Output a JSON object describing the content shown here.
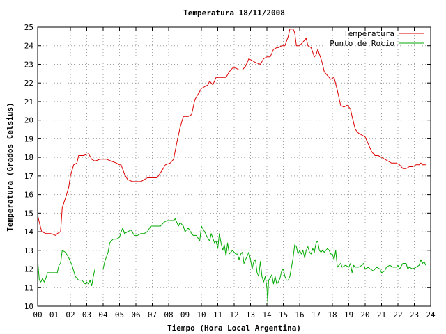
{
  "chart_data": {
    "type": "line",
    "title": "Temperatura 18/11/2008",
    "xlabel": "Tiempo (Hora Local Argentina)",
    "ylabel": "Temperatura (Grados Celsius)",
    "xlim": [
      0,
      24
    ],
    "ylim": [
      10,
      25
    ],
    "x_ticks": [
      "00",
      "01",
      "02",
      "03",
      "04",
      "05",
      "06",
      "07",
      "08",
      "09",
      "10",
      "11",
      "12",
      "13",
      "14",
      "15",
      "16",
      "17",
      "18",
      "19",
      "20",
      "21",
      "22",
      "23",
      "24"
    ],
    "y_ticks": [
      "10",
      "11",
      "12",
      "13",
      "14",
      "15",
      "16",
      "17",
      "18",
      "19",
      "20",
      "21",
      "22",
      "23",
      "24",
      "25"
    ],
    "grid": true,
    "legend_position": "top-right",
    "series": [
      {
        "name": "Temperatura",
        "color": "#dd0000",
        "points": [
          [
            0.0,
            14.9
          ],
          [
            0.1,
            14.5
          ],
          [
            0.25,
            14.0
          ],
          [
            0.5,
            13.9
          ],
          [
            0.8,
            13.9
          ],
          [
            1.1,
            13.8
          ],
          [
            1.2,
            13.9
          ],
          [
            1.4,
            14.0
          ],
          [
            1.5,
            15.3
          ],
          [
            1.7,
            15.8
          ],
          [
            1.9,
            16.4
          ],
          [
            2.0,
            17.0
          ],
          [
            2.2,
            17.6
          ],
          [
            2.4,
            17.7
          ],
          [
            2.5,
            18.1
          ],
          [
            2.8,
            18.1
          ],
          [
            3.1,
            18.2
          ],
          [
            3.3,
            17.9
          ],
          [
            3.5,
            17.8
          ],
          [
            3.8,
            17.9
          ],
          [
            4.2,
            17.9
          ],
          [
            4.5,
            17.8
          ],
          [
            4.8,
            17.7
          ],
          [
            5.0,
            17.6
          ],
          [
            5.1,
            17.6
          ],
          [
            5.3,
            17.1
          ],
          [
            5.5,
            16.8
          ],
          [
            5.8,
            16.7
          ],
          [
            6.3,
            16.7
          ],
          [
            6.5,
            16.8
          ],
          [
            6.7,
            16.9
          ],
          [
            7.0,
            16.9
          ],
          [
            7.3,
            16.9
          ],
          [
            7.6,
            17.3
          ],
          [
            7.8,
            17.6
          ],
          [
            8.1,
            17.7
          ],
          [
            8.3,
            17.9
          ],
          [
            8.5,
            18.8
          ],
          [
            8.7,
            19.6
          ],
          [
            8.9,
            20.2
          ],
          [
            9.2,
            20.2
          ],
          [
            9.4,
            20.3
          ],
          [
            9.6,
            21.1
          ],
          [
            9.8,
            21.4
          ],
          [
            10.0,
            21.7
          ],
          [
            10.2,
            21.8
          ],
          [
            10.4,
            21.9
          ],
          [
            10.5,
            22.1
          ],
          [
            10.7,
            21.9
          ],
          [
            10.9,
            22.3
          ],
          [
            11.2,
            22.3
          ],
          [
            11.5,
            22.3
          ],
          [
            11.7,
            22.6
          ],
          [
            11.9,
            22.8
          ],
          [
            12.1,
            22.8
          ],
          [
            12.3,
            22.7
          ],
          [
            12.5,
            22.7
          ],
          [
            12.7,
            22.9
          ],
          [
            12.9,
            23.3
          ],
          [
            13.1,
            23.2
          ],
          [
            13.3,
            23.1
          ],
          [
            13.6,
            23.0
          ],
          [
            13.8,
            23.3
          ],
          [
            14.0,
            23.4
          ],
          [
            14.2,
            23.4
          ],
          [
            14.4,
            23.8
          ],
          [
            14.6,
            23.9
          ],
          [
            14.7,
            23.9
          ],
          [
            14.9,
            24.0
          ],
          [
            15.1,
            24.0
          ],
          [
            15.3,
            24.5
          ],
          [
            15.4,
            24.9
          ],
          [
            15.5,
            24.9
          ],
          [
            15.6,
            24.9
          ],
          [
            15.7,
            24.7
          ],
          [
            15.8,
            24.0
          ],
          [
            16.0,
            24.0
          ],
          [
            16.2,
            24.2
          ],
          [
            16.4,
            24.4
          ],
          [
            16.5,
            24.0
          ],
          [
            16.7,
            23.9
          ],
          [
            16.9,
            23.4
          ],
          [
            17.0,
            23.5
          ],
          [
            17.1,
            23.8
          ],
          [
            17.3,
            23.3
          ],
          [
            17.4,
            23.0
          ],
          [
            17.5,
            22.6
          ],
          [
            17.7,
            22.4
          ],
          [
            17.9,
            22.2
          ],
          [
            18.1,
            22.3
          ],
          [
            18.3,
            21.6
          ],
          [
            18.5,
            20.8
          ],
          [
            18.7,
            20.7
          ],
          [
            18.9,
            20.8
          ],
          [
            19.1,
            20.6
          ],
          [
            19.2,
            20.2
          ],
          [
            19.4,
            19.5
          ],
          [
            19.6,
            19.3
          ],
          [
            19.8,
            19.2
          ],
          [
            20.0,
            19.1
          ],
          [
            20.2,
            18.7
          ],
          [
            20.4,
            18.3
          ],
          [
            20.6,
            18.1
          ],
          [
            20.8,
            18.1
          ],
          [
            21.0,
            18.0
          ],
          [
            21.2,
            17.9
          ],
          [
            21.4,
            17.8
          ],
          [
            21.6,
            17.7
          ],
          [
            21.9,
            17.7
          ],
          [
            22.1,
            17.6
          ],
          [
            22.3,
            17.4
          ],
          [
            22.5,
            17.4
          ],
          [
            22.7,
            17.5
          ],
          [
            22.9,
            17.5
          ],
          [
            23.1,
            17.6
          ],
          [
            23.3,
            17.6
          ],
          [
            23.4,
            17.7
          ],
          [
            23.5,
            17.6
          ],
          [
            23.7,
            17.6
          ]
        ]
      },
      {
        "name": "Punto de Rocío",
        "color": "#00aa00",
        "points": [
          [
            0.0,
            12.5
          ],
          [
            0.1,
            11.4
          ],
          [
            0.2,
            11.3
          ],
          [
            0.3,
            11.5
          ],
          [
            0.4,
            11.3
          ],
          [
            0.5,
            11.5
          ],
          [
            0.6,
            11.8
          ],
          [
            0.8,
            11.8
          ],
          [
            1.0,
            11.8
          ],
          [
            1.2,
            11.8
          ],
          [
            1.3,
            12.2
          ],
          [
            1.4,
            12.3
          ],
          [
            1.5,
            13.0
          ],
          [
            1.7,
            12.9
          ],
          [
            1.9,
            12.6
          ],
          [
            2.1,
            12.2
          ],
          [
            2.3,
            11.6
          ],
          [
            2.5,
            11.4
          ],
          [
            2.7,
            11.4
          ],
          [
            2.9,
            11.2
          ],
          [
            3.0,
            11.3
          ],
          [
            3.1,
            11.2
          ],
          [
            3.2,
            11.4
          ],
          [
            3.3,
            11.1
          ],
          [
            3.4,
            11.6
          ],
          [
            3.5,
            12.0
          ],
          [
            3.7,
            12.0
          ],
          [
            4.0,
            12.0
          ],
          [
            4.1,
            12.4
          ],
          [
            4.3,
            12.9
          ],
          [
            4.4,
            13.4
          ],
          [
            4.6,
            13.6
          ],
          [
            4.8,
            13.6
          ],
          [
            5.0,
            13.7
          ],
          [
            5.1,
            14.0
          ],
          [
            5.2,
            14.2
          ],
          [
            5.3,
            13.9
          ],
          [
            5.5,
            14.0
          ],
          [
            5.7,
            14.1
          ],
          [
            5.9,
            13.8
          ],
          [
            6.1,
            13.8
          ],
          [
            6.3,
            13.9
          ],
          [
            6.5,
            13.9
          ],
          [
            6.7,
            14.0
          ],
          [
            6.9,
            14.3
          ],
          [
            7.1,
            14.3
          ],
          [
            7.3,
            14.3
          ],
          [
            7.5,
            14.3
          ],
          [
            7.7,
            14.5
          ],
          [
            7.9,
            14.6
          ],
          [
            8.1,
            14.6
          ],
          [
            8.3,
            14.6
          ],
          [
            8.4,
            14.7
          ],
          [
            8.6,
            14.3
          ],
          [
            8.7,
            14.5
          ],
          [
            8.9,
            14.3
          ],
          [
            9.0,
            14.0
          ],
          [
            9.2,
            14.2
          ],
          [
            9.4,
            13.9
          ],
          [
            9.5,
            13.8
          ],
          [
            9.7,
            13.8
          ],
          [
            9.9,
            13.5
          ],
          [
            10.0,
            14.3
          ],
          [
            10.2,
            14.0
          ],
          [
            10.3,
            13.8
          ],
          [
            10.5,
            13.5
          ],
          [
            10.6,
            13.9
          ],
          [
            10.8,
            13.4
          ],
          [
            10.9,
            13.5
          ],
          [
            11.0,
            13.1
          ],
          [
            11.1,
            13.9
          ],
          [
            11.2,
            13.4
          ],
          [
            11.3,
            13.0
          ],
          [
            11.4,
            13.3
          ],
          [
            11.5,
            12.7
          ],
          [
            11.6,
            13.4
          ],
          [
            11.7,
            12.8
          ],
          [
            11.9,
            13.0
          ],
          [
            12.0,
            12.9
          ],
          [
            12.1,
            12.8
          ],
          [
            12.2,
            12.8
          ],
          [
            12.3,
            12.5
          ],
          [
            12.4,
            12.8
          ],
          [
            12.5,
            12.9
          ],
          [
            12.6,
            12.3
          ],
          [
            12.7,
            12.5
          ],
          [
            12.9,
            12.9
          ],
          [
            13.0,
            12.5
          ],
          [
            13.1,
            12.0
          ],
          [
            13.2,
            12.4
          ],
          [
            13.3,
            12.5
          ],
          [
            13.4,
            11.8
          ],
          [
            13.5,
            11.6
          ],
          [
            13.6,
            12.4
          ],
          [
            13.7,
            11.6
          ],
          [
            13.8,
            11.3
          ],
          [
            13.9,
            11.6
          ],
          [
            14.0,
            11.0
          ],
          [
            14.05,
            10.2
          ],
          [
            14.1,
            11.4
          ],
          [
            14.2,
            11.5
          ],
          [
            14.3,
            11.7
          ],
          [
            14.4,
            11.2
          ],
          [
            14.5,
            11.6
          ],
          [
            14.6,
            11.2
          ],
          [
            14.7,
            11.3
          ],
          [
            14.8,
            11.5
          ],
          [
            14.9,
            11.9
          ],
          [
            15.0,
            12.0
          ],
          [
            15.1,
            11.6
          ],
          [
            15.2,
            11.4
          ],
          [
            15.3,
            11.4
          ],
          [
            15.4,
            11.6
          ],
          [
            15.5,
            12.1
          ],
          [
            15.6,
            12.6
          ],
          [
            15.7,
            13.3
          ],
          [
            15.8,
            13.2
          ],
          [
            15.9,
            12.8
          ],
          [
            16.0,
            13.0
          ],
          [
            16.1,
            12.8
          ],
          [
            16.2,
            13.0
          ],
          [
            16.3,
            12.6
          ],
          [
            16.4,
            13.0
          ],
          [
            16.5,
            13.2
          ],
          [
            16.6,
            12.9
          ],
          [
            16.7,
            12.8
          ],
          [
            16.8,
            13.1
          ],
          [
            16.9,
            12.9
          ],
          [
            17.0,
            13.4
          ],
          [
            17.1,
            13.5
          ],
          [
            17.2,
            13.0
          ],
          [
            17.3,
            12.9
          ],
          [
            17.4,
            13.0
          ],
          [
            17.5,
            12.9
          ],
          [
            17.6,
            13.0
          ],
          [
            17.7,
            13.1
          ],
          [
            17.8,
            13.0
          ],
          [
            17.9,
            12.8
          ],
          [
            18.0,
            12.8
          ],
          [
            18.1,
            12.5
          ],
          [
            18.2,
            13.0
          ],
          [
            18.3,
            12.1
          ],
          [
            18.4,
            12.2
          ],
          [
            18.5,
            12.3
          ],
          [
            18.6,
            12.1
          ],
          [
            18.8,
            12.2
          ],
          [
            19.0,
            12.1
          ],
          [
            19.1,
            12.3
          ],
          [
            19.2,
            11.8
          ],
          [
            19.3,
            12.2
          ],
          [
            19.4,
            12.1
          ],
          [
            19.6,
            12.1
          ],
          [
            19.8,
            12.2
          ],
          [
            19.9,
            12.3
          ],
          [
            20.0,
            12.0
          ],
          [
            20.2,
            12.1
          ],
          [
            20.3,
            12.0
          ],
          [
            20.5,
            11.9
          ],
          [
            20.6,
            12.0
          ],
          [
            20.7,
            12.1
          ],
          [
            20.9,
            12.0
          ],
          [
            21.0,
            11.8
          ],
          [
            21.2,
            11.9
          ],
          [
            21.3,
            12.1
          ],
          [
            21.5,
            12.2
          ],
          [
            21.7,
            12.1
          ],
          [
            21.9,
            12.1
          ],
          [
            22.0,
            12.2
          ],
          [
            22.1,
            12.0
          ],
          [
            22.3,
            12.3
          ],
          [
            22.5,
            12.3
          ],
          [
            22.6,
            12.0
          ],
          [
            22.7,
            12.1
          ],
          [
            22.9,
            12.0
          ],
          [
            23.1,
            12.1
          ],
          [
            23.3,
            12.2
          ],
          [
            23.4,
            12.5
          ],
          [
            23.5,
            12.3
          ],
          [
            23.6,
            12.4
          ],
          [
            23.7,
            12.2
          ]
        ]
      }
    ]
  }
}
